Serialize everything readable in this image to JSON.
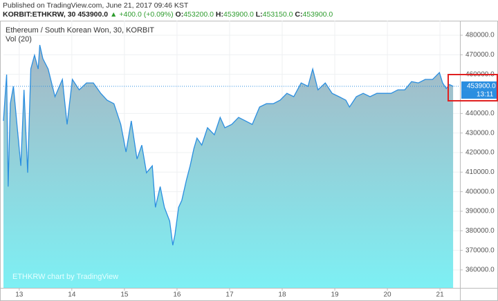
{
  "header": {
    "published": "Published on TradingView.com, June 21, 2017 09:46 KST",
    "symbol": "KORBIT:ETHKRW, 30",
    "last": "453900.0",
    "change": "+400.0 (+0.09%)",
    "ohlc": [
      {
        "label": "O:",
        "value": "453200.0"
      },
      {
        "label": "H:",
        "value": "453900.0"
      },
      {
        "label": "L:",
        "value": "453150.0"
      },
      {
        "label": "C:",
        "value": "453900.0"
      }
    ]
  },
  "chart_data": {
    "type": "area",
    "title": "Ethereum / South Korean Won, 30, KORBIT",
    "subtitle": "Vol (20)",
    "watermark": "ETHKRW chart by TradingView",
    "x": [
      12.7,
      12.74,
      12.76,
      12.79,
      12.83,
      12.89,
      13.03,
      13.09,
      13.16,
      13.22,
      13.29,
      13.36,
      13.39,
      13.45,
      13.55,
      13.68,
      13.82,
      13.91,
      14.01,
      14.14,
      14.28,
      14.41,
      14.55,
      14.67,
      14.8,
      14.93,
      15.03,
      15.13,
      15.24,
      15.33,
      15.42,
      15.53,
      15.59,
      15.68,
      15.76,
      15.86,
      15.92,
      15.96,
      16.03,
      16.09,
      16.18,
      16.25,
      16.32,
      16.38,
      16.47,
      16.58,
      16.71,
      16.82,
      16.91,
      17.04,
      17.17,
      17.3,
      17.43,
      17.57,
      17.7,
      17.83,
      17.96,
      18.09,
      18.22,
      18.36,
      18.49,
      18.58,
      18.68,
      18.82,
      18.95,
      19.08,
      19.21,
      19.28,
      19.41,
      19.54,
      19.67,
      19.8,
      19.93,
      20.07,
      20.2,
      20.33,
      20.46,
      20.59,
      20.72,
      20.86,
      20.99,
      21.05,
      21.12,
      21.18,
      21.25
    ],
    "series": [
      {
        "name": "ETHKRW",
        "color": "#2a8ee0",
        "values": [
          436200,
          452100,
          459900,
          402600,
          445000,
          453900,
          413200,
          452100,
          409700,
          462700,
          469800,
          462700,
          475000,
          468000,
          462700,
          448600,
          457400,
          434400,
          457400,
          452100,
          455600,
          455600,
          450300,
          446800,
          445000,
          434400,
          420300,
          436200,
          416700,
          423800,
          409700,
          413200,
          392000,
          402600,
          392000,
          385000,
          372600,
          377900,
          392000,
          395500,
          406100,
          413200,
          422000,
          427400,
          423800,
          432700,
          429100,
          438000,
          432700,
          434400,
          438000,
          436200,
          434400,
          443300,
          445000,
          445000,
          446800,
          450300,
          448600,
          455600,
          453900,
          462700,
          452100,
          455600,
          450300,
          448600,
          446800,
          443300,
          448600,
          450300,
          448600,
          450300,
          450300,
          450300,
          452100,
          452100,
          456300,
          455600,
          457400,
          457400,
          460900,
          455600,
          452800,
          454800,
          453900
        ]
      }
    ],
    "xlim": [
      12.7,
      21.38
    ],
    "xticks": [
      13,
      14,
      15,
      16,
      17,
      18,
      19,
      20,
      21
    ],
    "ylim": [
      350800,
      484600
    ],
    "yticks": [
      {
        "value": 360000,
        "label": "360000.0"
      },
      {
        "value": 370000,
        "label": "370000.0"
      },
      {
        "value": 380000,
        "label": "380000.0"
      },
      {
        "value": 390000,
        "label": "390000.0"
      },
      {
        "value": 400000,
        "label": "400000.0"
      },
      {
        "value": 410000,
        "label": "410000.0"
      },
      {
        "value": 420000,
        "label": "420000.0"
      },
      {
        "value": 430000,
        "label": "430000.0"
      },
      {
        "value": 440000,
        "label": "440000.0"
      },
      {
        "value": 460000,
        "label": "460000.0"
      },
      {
        "value": 470000,
        "label": "470000.0"
      },
      {
        "value": 480000,
        "label": "480000.0"
      }
    ],
    "price_line": {
      "value": 453900,
      "label": "453900.0"
    },
    "countdown": "13:11",
    "grid": true
  }
}
